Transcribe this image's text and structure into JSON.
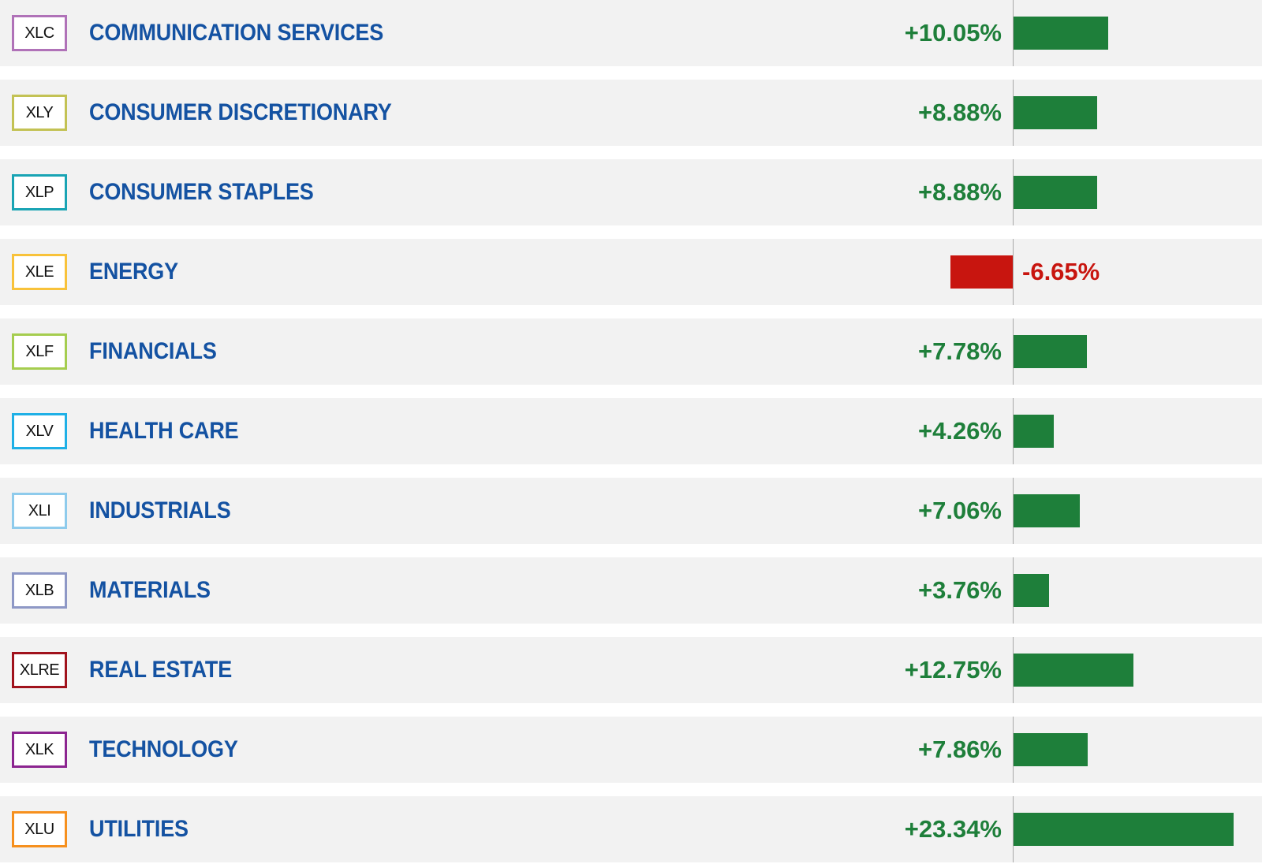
{
  "chart_data": {
    "type": "bar",
    "orientation": "horizontal",
    "colors": {
      "positive": "#1e7f3a",
      "negative": "#c8150f",
      "sector_label": "#1452a2",
      "row_background": "#f2f2f2",
      "axis": "#a8a8a8"
    },
    "rows": [
      {
        "ticker": "XLC",
        "sector": "COMMUNICATION SERVICES",
        "value": 10.05,
        "label": "+10.05%",
        "ticker_color": "#b072b8"
      },
      {
        "ticker": "XLY",
        "sector": "CONSUMER DISCRETIONARY",
        "value": 8.88,
        "label": "+8.88%",
        "ticker_color": "#c3c254"
      },
      {
        "ticker": "XLP",
        "sector": "CONSUMER STAPLES",
        "value": 8.88,
        "label": "+8.88%",
        "ticker_color": "#19a4b4"
      },
      {
        "ticker": "XLE",
        "sector": "ENERGY",
        "value": -6.65,
        "label": "-6.65%",
        "ticker_color": "#f8c23a"
      },
      {
        "ticker": "XLF",
        "sector": "FINANCIALS",
        "value": 7.78,
        "label": "+7.78%",
        "ticker_color": "#a5cd4f"
      },
      {
        "ticker": "XLV",
        "sector": "HEALTH CARE",
        "value": 4.26,
        "label": "+4.26%",
        "ticker_color": "#1fb0e6"
      },
      {
        "ticker": "XLI",
        "sector": "INDUSTRIALS",
        "value": 7.06,
        "label": "+7.06%",
        "ticker_color": "#8ecbec"
      },
      {
        "ticker": "XLB",
        "sector": "MATERIALS",
        "value": 3.76,
        "label": "+3.76%",
        "ticker_color": "#8e98c6"
      },
      {
        "ticker": "XLRE",
        "sector": "REAL ESTATE",
        "value": 12.75,
        "label": "+12.75%",
        "ticker_color": "#a1131d"
      },
      {
        "ticker": "XLK",
        "sector": "TECHNOLOGY",
        "value": 7.86,
        "label": "+7.86%",
        "ticker_color": "#8c2590"
      },
      {
        "ticker": "XLU",
        "sector": "UTILITIES",
        "value": 23.34,
        "label": "+23.34%",
        "ticker_color": "#f6901e"
      }
    ]
  }
}
